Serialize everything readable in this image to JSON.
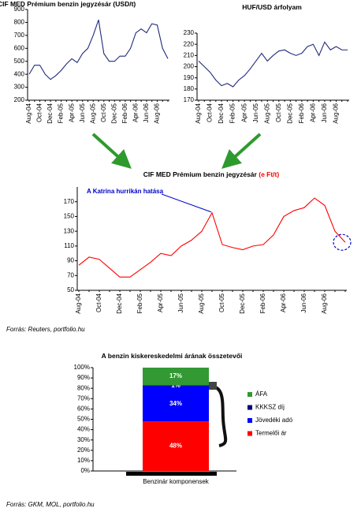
{
  "chart_data": [
    {
      "type": "line",
      "title": "CIF MED Prémium benzin jegyzésár (USD/t)",
      "color": "#1f2a7a",
      "categories": [
        "Aug-04",
        null,
        "Oct-04",
        null,
        "Dec-04",
        null,
        "Feb-05",
        null,
        "Apr-05",
        null,
        "Jun-05",
        null,
        "Aug-05",
        null,
        "Oct-05",
        null,
        "Dec-05",
        null,
        "Feb-06",
        null,
        "Apr-06",
        null,
        "Jun-06",
        null,
        "Aug-06",
        null,
        null
      ],
      "values": [
        400,
        470,
        470,
        400,
        360,
        390,
        430,
        480,
        520,
        490,
        560,
        600,
        700,
        820,
        560,
        500,
        500,
        540,
        540,
        600,
        720,
        750,
        720,
        790,
        780,
        600,
        520
      ],
      "ylim": [
        200,
        900
      ],
      "yticks": [
        200,
        300,
        400,
        500,
        600,
        700,
        800,
        900
      ]
    },
    {
      "type": "line",
      "title": "HUF/USD árfolyam",
      "color": "#1f2a7a",
      "categories": [
        "Aug-04",
        null,
        "Oct-04",
        null,
        "Dec-04",
        null,
        "Feb-05",
        null,
        "Apr-05",
        null,
        "Jun-05",
        null,
        "Aug-05",
        null,
        "Oct-05",
        null,
        "Dec-05",
        null,
        "Feb-06",
        null,
        "Apr-06",
        null,
        "Jun-06",
        null,
        "Aug-06",
        null,
        null
      ],
      "values": [
        205,
        200,
        195,
        188,
        183,
        185,
        182,
        188,
        192,
        198,
        205,
        212,
        205,
        210,
        214,
        215,
        212,
        210,
        212,
        218,
        220,
        210,
        222,
        215,
        218,
        215,
        215
      ],
      "ylim": [
        170,
        230
      ],
      "yticks": [
        170,
        180,
        190,
        200,
        210,
        220,
        230
      ]
    },
    {
      "type": "line",
      "title": "CIF MED Prémium benzin jegyzésár",
      "unit": "(e Ft/t)",
      "color": "#ff0000",
      "annotation": "A Katrina hurrikán hatása",
      "categories": [
        "Aug-04",
        null,
        "Oct-04",
        null,
        "Dec-04",
        null,
        "Feb-05",
        null,
        "Apr-05",
        null,
        "Jun-05",
        null,
        "Aug-05",
        null,
        "Oct-05",
        null,
        "Dec-05",
        null,
        "Feb-06",
        null,
        "Apr-06",
        null,
        "Jun-06",
        null,
        "Aug-06",
        null,
        null
      ],
      "values": [
        84,
        95,
        92,
        80,
        68,
        68,
        78,
        88,
        100,
        97,
        110,
        118,
        130,
        155,
        112,
        108,
        105,
        110,
        112,
        125,
        150,
        158,
        162,
        175,
        165,
        130,
        115
      ],
      "ylim": [
        50,
        190
      ],
      "yticks": [
        50,
        70,
        90,
        110,
        130,
        150,
        170
      ],
      "source": "Forrás: Reuters, portfolio.hu"
    },
    {
      "type": "stacked_bar",
      "title": "A benzin kiskereskedelmi árának összetevői",
      "categories": [
        "Benzinár komponensek"
      ],
      "series": [
        {
          "name": "Termelői ár",
          "color": "#ff0000",
          "values": [
            48
          ],
          "value_labels": [
            "48%"
          ]
        },
        {
          "name": "Jövedéki adó",
          "color": "#0000ff",
          "values": [
            34
          ],
          "value_labels": [
            "34%"
          ]
        },
        {
          "name": "KKKSZ díj",
          "color": "#000080",
          "values": [
            1
          ],
          "value_labels": [
            "1%"
          ]
        },
        {
          "name": "ÁFA",
          "color": "#339933",
          "values": [
            17
          ],
          "value_labels": [
            "17%"
          ]
        }
      ],
      "ylim": [
        0,
        100
      ],
      "yticks": [
        {
          "value": 0,
          "label": "0%"
        },
        {
          "value": 10,
          "label": "10%"
        },
        {
          "value": 20,
          "label": "20%"
        },
        {
          "value": 30,
          "label": "30%"
        },
        {
          "value": 40,
          "label": "40%"
        },
        {
          "value": 50,
          "label": "50%"
        },
        {
          "value": 60,
          "label": "60%"
        },
        {
          "value": 70,
          "label": "70%"
        },
        {
          "value": 80,
          "label": "80%"
        },
        {
          "value": 90,
          "label": "90%"
        },
        {
          "value": 100,
          "label": "100%"
        }
      ],
      "source": "Forrás: GKM, MOL, portfolio.hu"
    }
  ]
}
